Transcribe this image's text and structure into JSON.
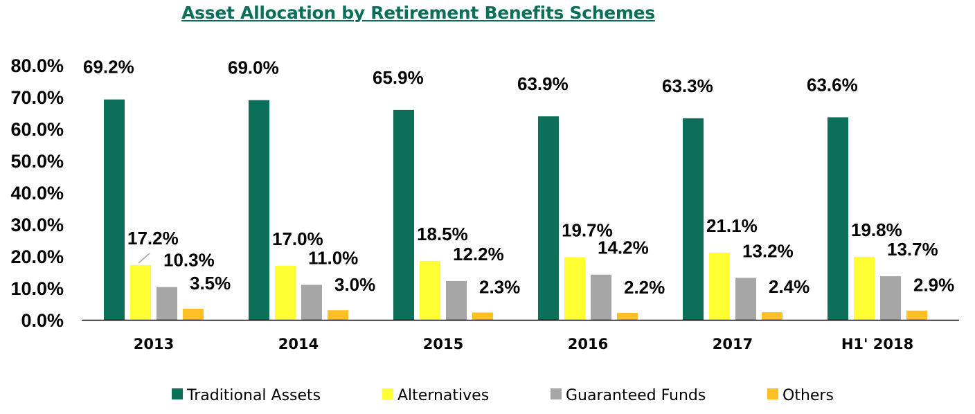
{
  "chart_data": {
    "type": "bar",
    "title": "Asset Allocation by Retirement Benefits Schemes",
    "categories": [
      "2013",
      "2014",
      "2015",
      "2016",
      "2017",
      "H1' 2018"
    ],
    "series": [
      {
        "name": "Traditional Assets",
        "color": "#0c6f5a",
        "values": [
          69.2,
          69.0,
          65.9,
          63.9,
          63.3,
          63.6
        ]
      },
      {
        "name": "Alternatives",
        "color": "#ffff33",
        "values": [
          17.2,
          17.0,
          18.5,
          19.7,
          21.1,
          19.8
        ]
      },
      {
        "name": "Guaranteed Funds",
        "color": "#a6a6a6",
        "values": [
          10.3,
          11.0,
          12.2,
          14.2,
          13.2,
          13.7
        ]
      },
      {
        "name": "Others",
        "color": "#ffbf26",
        "values": [
          3.5,
          3.0,
          2.3,
          2.2,
          2.4,
          2.9
        ]
      }
    ],
    "ylim": [
      0,
      80
    ],
    "yticks": [
      "0.0%",
      "10.0%",
      "20.0%",
      "30.0%",
      "40.0%",
      "50.0%",
      "60.0%",
      "70.0%",
      "80.0%"
    ],
    "value_format": "percent_1dp",
    "legend_position": "bottom",
    "grid": false
  }
}
